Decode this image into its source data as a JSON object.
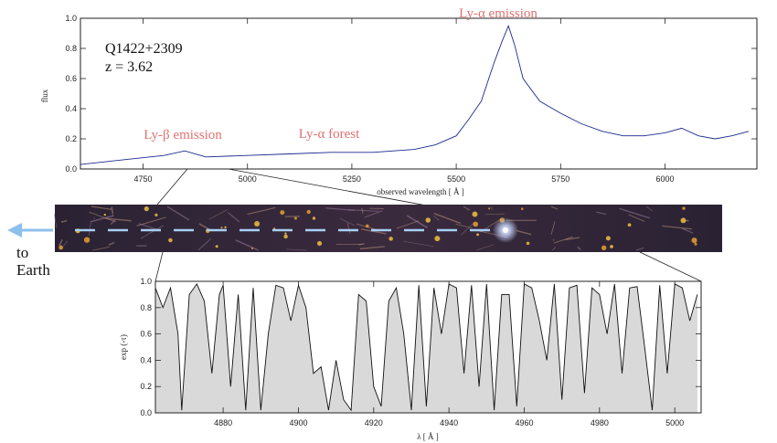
{
  "annotations": {
    "ly_alpha_emission": "Ly-α emission",
    "ly_beta_emission": "Ly-β emission",
    "ly_alpha_forest": "Ly-α forest",
    "quasar_name": "Q1422+2309",
    "redshift": "z = 3.62",
    "to_earth_line1": "to",
    "to_earth_line2": "Earth"
  },
  "colors": {
    "spectrum": "#1c2a8c",
    "annotation": "#e07070",
    "arrow": "#8ec0ee",
    "sightline": "#a8d0f4",
    "absorption_fill": "#d9d9d9"
  },
  "chart_data": [
    {
      "type": "line",
      "title": "",
      "xlabel": "observed wavelength [ Å ]",
      "ylabel": "flux",
      "xlim": [
        4600,
        6220
      ],
      "ylim": [
        0,
        1.0
      ],
      "x_ticks": [
        "4750",
        "5000",
        "5250",
        "5500",
        "5750",
        "6000"
      ],
      "y_ticks": [
        "0.0",
        "0.2",
        "0.4",
        "0.6",
        "0.8",
        "1.0"
      ],
      "series": [
        {
          "x": [
            4600,
            4700,
            4800,
            4850,
            4900,
            5000,
            5100,
            5200,
            5300,
            5400,
            5450,
            5500,
            5530,
            5560,
            5590,
            5610,
            5625,
            5640,
            5660,
            5700,
            5750,
            5800,
            5850,
            5900,
            5950,
            6000,
            6040,
            6080,
            6120,
            6160,
            6200
          ],
          "y": [
            0.03,
            0.06,
            0.09,
            0.12,
            0.08,
            0.09,
            0.1,
            0.11,
            0.11,
            0.13,
            0.16,
            0.22,
            0.33,
            0.45,
            0.7,
            0.85,
            0.95,
            0.82,
            0.6,
            0.45,
            0.37,
            0.3,
            0.25,
            0.22,
            0.22,
            0.24,
            0.27,
            0.22,
            0.2,
            0.22,
            0.25
          ]
        }
      ],
      "grid": false,
      "legend": "none"
    },
    {
      "type": "area",
      "title": "",
      "xlabel": "λ [ Å ]",
      "ylabel": "exp (-τ)",
      "xlim": [
        4862,
        5007
      ],
      "ylim": [
        0,
        1.0
      ],
      "x_ticks": [
        "4880",
        "4900",
        "4920",
        "4940",
        "4960",
        "4980",
        "5000"
      ],
      "y_ticks": [
        "0.0",
        "0.2",
        "0.4",
        "0.6",
        "0.8",
        "1.0"
      ],
      "series": [
        {
          "x": [
            4862,
            4864,
            4866,
            4868,
            4869,
            4871,
            4873,
            4875,
            4877,
            4879,
            4880,
            4882,
            4884,
            4886,
            4888,
            4890,
            4892,
            4894,
            4896,
            4898,
            4900,
            4902,
            4904,
            4906,
            4908,
            4910,
            4912,
            4914,
            4916,
            4918,
            4920,
            4922,
            4924,
            4926,
            4928,
            4930,
            4932,
            4934,
            4936,
            4938,
            4940,
            4942,
            4944,
            4946,
            4948,
            4950,
            4952,
            4954,
            4956,
            4958,
            4960,
            4962,
            4964,
            4966,
            4968,
            4970,
            4972,
            4974,
            4976,
            4978,
            4980,
            4982,
            4984,
            4986,
            4988,
            4990,
            4992,
            4994,
            4996,
            4998,
            5000,
            5002,
            5004,
            5006
          ],
          "y": [
            0.95,
            0.8,
            0.95,
            0.6,
            0.02,
            0.9,
            0.98,
            0.85,
            0.3,
            0.9,
            0.97,
            0.2,
            0.9,
            0.02,
            0.95,
            0.02,
            0.6,
            0.97,
            0.95,
            0.7,
            0.97,
            0.8,
            0.3,
            0.35,
            0.02,
            0.4,
            0.1,
            0.02,
            0.9,
            0.85,
            0.2,
            0.05,
            0.85,
            0.95,
            0.6,
            0.02,
            0.97,
            0.05,
            0.95,
            0.6,
            0.98,
            0.95,
            0.3,
            0.97,
            0.2,
            0.98,
            0.02,
            0.9,
            0.9,
            0.05,
            0.98,
            0.95,
            0.7,
            0.4,
            0.98,
            0.1,
            0.95,
            0.97,
            0.15,
            0.95,
            0.9,
            0.6,
            0.98,
            0.3,
            0.95,
            0.96,
            0.5,
            0.02,
            0.97,
            0.3,
            0.98,
            0.95,
            0.7,
            0.9
          ]
        }
      ],
      "grid": false,
      "legend": "none"
    }
  ]
}
